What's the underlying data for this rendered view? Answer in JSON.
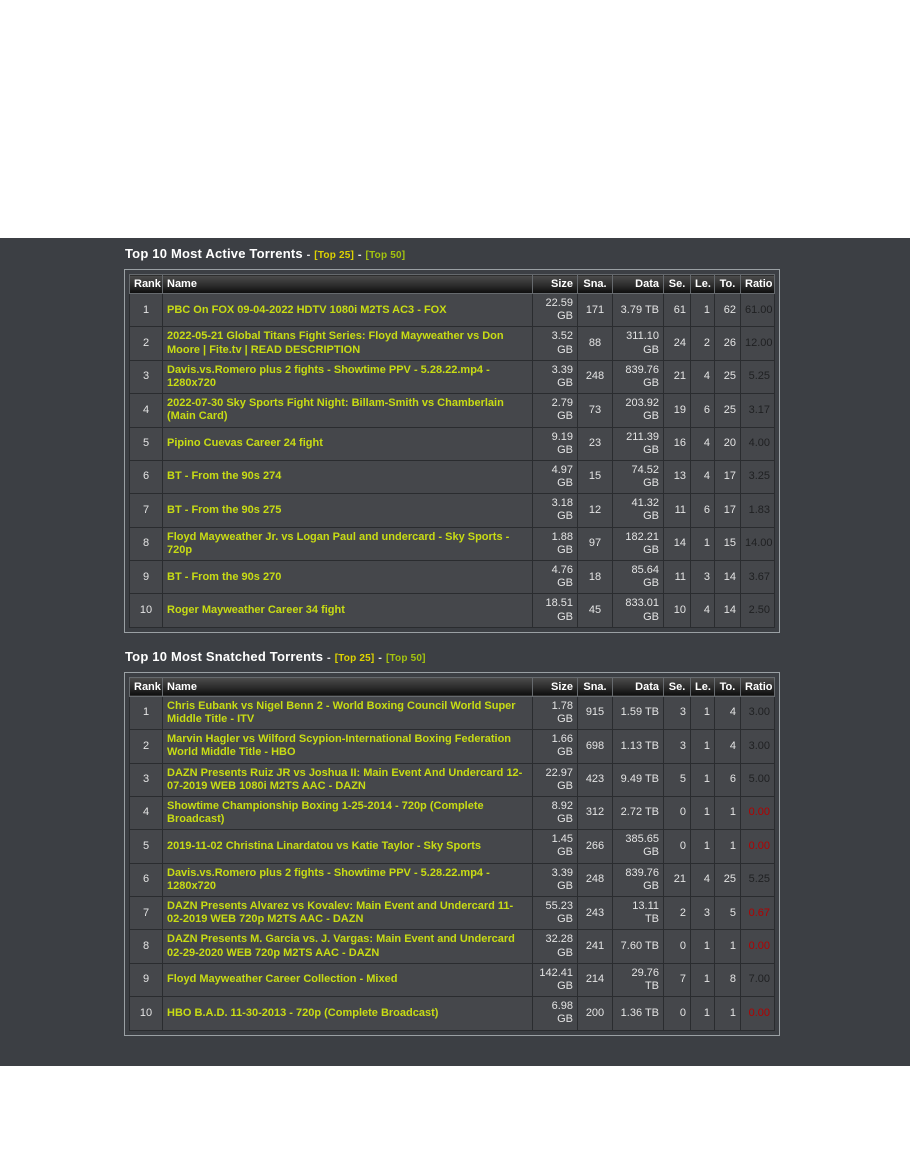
{
  "colors": {
    "band_background": "#3c3f44",
    "row_background": "#45474b",
    "torrent_link": "#c8dc14",
    "ratio_normal": "#1f2022",
    "ratio_low": "#b30000",
    "top25_link": "#ded300",
    "top50_link": "#a4c40e"
  },
  "sections": [
    {
      "title": "Top 10 Most Active Torrents",
      "dash": "-",
      "top25_label": "[Top 25]",
      "top50_label": "[Top 50]",
      "columns": [
        "Rank",
        "Name",
        "Size",
        "Sna.",
        "Data",
        "Se.",
        "Le.",
        "To.",
        "Ratio"
      ],
      "rows": [
        {
          "rank": "1",
          "name": "PBC On FOX 09-04-2022 HDTV 1080i M2TS AC3 - FOX",
          "size": "22.59 GB",
          "sna": "171",
          "data": "3.79 TB",
          "se": "61",
          "le": "1",
          "to": "62",
          "ratio": "61.00",
          "ratio_low": false
        },
        {
          "rank": "2",
          "name": "2022-05-21 Global Titans Fight Series: Floyd Mayweather vs Don Moore | Fite.tv | READ DESCRIPTION",
          "size": "3.52 GB",
          "sna": "88",
          "data": "311.10 GB",
          "se": "24",
          "le": "2",
          "to": "26",
          "ratio": "12.00",
          "ratio_low": false
        },
        {
          "rank": "3",
          "name": "Davis.vs.Romero plus 2 fights - Showtime PPV - 5.28.22.mp4 - 1280x720",
          "size": "3.39 GB",
          "sna": "248",
          "data": "839.76 GB",
          "se": "21",
          "le": "4",
          "to": "25",
          "ratio": "5.25",
          "ratio_low": false
        },
        {
          "rank": "4",
          "name": "2022-07-30 Sky Sports Fight Night: Billam-Smith vs Chamberlain (Main Card)",
          "size": "2.79 GB",
          "sna": "73",
          "data": "203.92 GB",
          "se": "19",
          "le": "6",
          "to": "25",
          "ratio": "3.17",
          "ratio_low": false
        },
        {
          "rank": "5",
          "name": "Pipino Cuevas Career 24 fight",
          "size": "9.19 GB",
          "sna": "23",
          "data": "211.39 GB",
          "se": "16",
          "le": "4",
          "to": "20",
          "ratio": "4.00",
          "ratio_low": false
        },
        {
          "rank": "6",
          "name": "BT - From the 90s 274",
          "size": "4.97 GB",
          "sna": "15",
          "data": "74.52 GB",
          "se": "13",
          "le": "4",
          "to": "17",
          "ratio": "3.25",
          "ratio_low": false
        },
        {
          "rank": "7",
          "name": "BT - From the 90s 275",
          "size": "3.18 GB",
          "sna": "12",
          "data": "41.32 GB",
          "se": "11",
          "le": "6",
          "to": "17",
          "ratio": "1.83",
          "ratio_low": false
        },
        {
          "rank": "8",
          "name": "Floyd Mayweather Jr. vs Logan Paul and undercard - Sky Sports - 720p",
          "size": "1.88 GB",
          "sna": "97",
          "data": "182.21 GB",
          "se": "14",
          "le": "1",
          "to": "15",
          "ratio": "14.00",
          "ratio_low": false
        },
        {
          "rank": "9",
          "name": "BT - From the 90s 270",
          "size": "4.76 GB",
          "sna": "18",
          "data": "85.64 GB",
          "se": "11",
          "le": "3",
          "to": "14",
          "ratio": "3.67",
          "ratio_low": false
        },
        {
          "rank": "10",
          "name": "Roger Mayweather Career 34 fight",
          "size": "18.51 GB",
          "sna": "45",
          "data": "833.01 GB",
          "se": "10",
          "le": "4",
          "to": "14",
          "ratio": "2.50",
          "ratio_low": false
        }
      ]
    },
    {
      "title": "Top 10 Most Snatched Torrents",
      "dash": "-",
      "top25_label": "[Top 25]",
      "top50_label": "[Top 50]",
      "columns": [
        "Rank",
        "Name",
        "Size",
        "Sna.",
        "Data",
        "Se.",
        "Le.",
        "To.",
        "Ratio"
      ],
      "rows": [
        {
          "rank": "1",
          "name": "Chris Eubank vs Nigel Benn 2 - World Boxing Council World Super Middle Title - ITV",
          "size": "1.78 GB",
          "sna": "915",
          "data": "1.59 TB",
          "se": "3",
          "le": "1",
          "to": "4",
          "ratio": "3.00",
          "ratio_low": false
        },
        {
          "rank": "2",
          "name": "Marvin Hagler vs Wilford Scypion-International Boxing Federation World Middle Title - HBO",
          "size": "1.66 GB",
          "sna": "698",
          "data": "1.13 TB",
          "se": "3",
          "le": "1",
          "to": "4",
          "ratio": "3.00",
          "ratio_low": false
        },
        {
          "rank": "3",
          "name": "DAZN Presents Ruiz JR vs Joshua II: Main Event And Undercard 12-07-2019 WEB 1080i M2TS AAC - DAZN",
          "size": "22.97 GB",
          "sna": "423",
          "data": "9.49 TB",
          "se": "5",
          "le": "1",
          "to": "6",
          "ratio": "5.00",
          "ratio_low": false
        },
        {
          "rank": "4",
          "name": "Showtime Championship Boxing 1-25-2014 - 720p (Complete Broadcast)",
          "size": "8.92 GB",
          "sna": "312",
          "data": "2.72 TB",
          "se": "0",
          "le": "1",
          "to": "1",
          "ratio": "0.00",
          "ratio_low": true
        },
        {
          "rank": "5",
          "name": "2019-11-02 Christina Linardatou vs Katie Taylor - Sky Sports",
          "size": "1.45 GB",
          "sna": "266",
          "data": "385.65 GB",
          "se": "0",
          "le": "1",
          "to": "1",
          "ratio": "0.00",
          "ratio_low": true
        },
        {
          "rank": "6",
          "name": "Davis.vs.Romero plus 2 fights - Showtime PPV - 5.28.22.mp4 - 1280x720",
          "size": "3.39 GB",
          "sna": "248",
          "data": "839.76 GB",
          "se": "21",
          "le": "4",
          "to": "25",
          "ratio": "5.25",
          "ratio_low": false
        },
        {
          "rank": "7",
          "name": "DAZN Presents Alvarez vs Kovalev: Main Event and Undercard 11-02-2019 WEB 720p M2TS AAC - DAZN",
          "size": "55.23 GB",
          "sna": "243",
          "data": "13.11 TB",
          "se": "2",
          "le": "3",
          "to": "5",
          "ratio": "0.67",
          "ratio_low": true
        },
        {
          "rank": "8",
          "name": "DAZN Presents M. Garcia vs. J. Vargas: Main Event and Undercard 02-29-2020 WEB 720p M2TS AAC - DAZN",
          "size": "32.28 GB",
          "sna": "241",
          "data": "7.60 TB",
          "se": "0",
          "le": "1",
          "to": "1",
          "ratio": "0.00",
          "ratio_low": true
        },
        {
          "rank": "9",
          "name": "Floyd Mayweather Career Collection - Mixed",
          "size": "142.41 GB",
          "sna": "214",
          "data": "29.76 TB",
          "se": "7",
          "le": "1",
          "to": "8",
          "ratio": "7.00",
          "ratio_low": false
        },
        {
          "rank": "10",
          "name": "HBO B.A.D. 11-30-2013 - 720p (Complete Broadcast)",
          "size": "6.98 GB",
          "sna": "200",
          "data": "1.36 TB",
          "se": "0",
          "le": "1",
          "to": "1",
          "ratio": "0.00",
          "ratio_low": true
        }
      ]
    }
  ]
}
